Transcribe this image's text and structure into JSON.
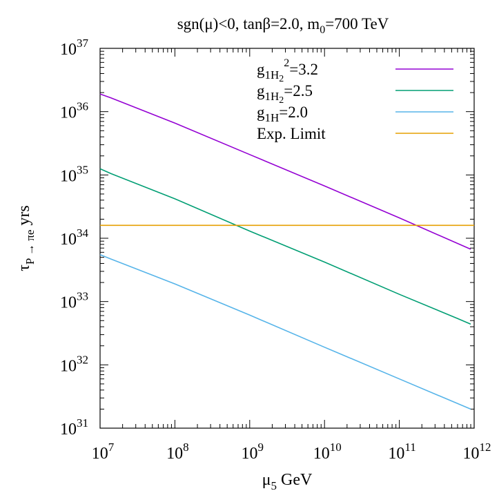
{
  "chart_data": {
    "type": "line",
    "title": "sgn(μ)<0, tanβ=2.0, m",
    "title_sub": "0",
    "title_tail": "=700 TeV",
    "xlabel": "μ",
    "xlabel_sub": "5",
    "xlabel_tail": " GeV",
    "ylabel": "τ",
    "ylabel_sub": "P → πe",
    "ylabel_tail": " yrs",
    "x_scale": "log",
    "y_scale": "log",
    "xlim": [
      10000000.0,
      1000000000000.0
    ],
    "ylim": [
      1e+31,
      1e+37
    ],
    "x_ticks": [
      {
        "base": "10",
        "exp": "7"
      },
      {
        "base": "10",
        "exp": "8"
      },
      {
        "base": "10",
        "exp": "9"
      },
      {
        "base": "10",
        "exp": "10"
      },
      {
        "base": "10",
        "exp": "11"
      },
      {
        "base": "10",
        "exp": "12"
      }
    ],
    "y_ticks": [
      {
        "base": "10",
        "exp": "31"
      },
      {
        "base": "10",
        "exp": "32"
      },
      {
        "base": "10",
        "exp": "33"
      },
      {
        "base": "10",
        "exp": "34"
      },
      {
        "base": "10",
        "exp": "35"
      },
      {
        "base": "10",
        "exp": "36"
      },
      {
        "base": "10",
        "exp": "37"
      }
    ],
    "grid": false,
    "legend_position": "top-right",
    "series": [
      {
        "name": "g1H2²=3.2",
        "legend": {
          "main": "g",
          "sub": "1H",
          "subsub": "2",
          "sup": "2",
          "tail": "=3.2"
        },
        "color": "#9400d3",
        "x": [
          10000000.0,
          14000000.0,
          100000000.0,
          1000000000.0,
          10000000000.0,
          100000000000.0,
          900000000000.0
        ],
        "y": [
          1.9e+36,
          1.65e+36,
          6.6e+35,
          2.1e+35,
          6.7e+34,
          2.1e+34,
          6.7e+33
        ]
      },
      {
        "name": "g1H2=2.5",
        "legend": {
          "main": "g",
          "sub": "1H",
          "subsub": "2",
          "sup": "",
          "tail": "=2.5"
        },
        "color": "#009e73",
        "x": [
          10000000.0,
          14000000.0,
          100000000.0,
          1000000000.0,
          10000000000.0,
          100000000000.0,
          600000000000.0,
          900000000000.0
        ],
        "y": [
          1.25e+35,
          1.05e+35,
          4.2e+34,
          1.3e+34,
          4.2e+33,
          1.3e+33,
          5.4e+32,
          4.4e+32
        ]
      },
      {
        "name": "g1H=2.0",
        "legend": {
          "main": "g",
          "sub": "1H",
          "subsub": "",
          "sup": "",
          "tail": "=2.0"
        },
        "color": "#56b4e9",
        "x": [
          10000000.0,
          14000000.0,
          100000000.0,
          1000000000.0,
          10000000000.0,
          100000000000.0,
          900000000000.0
        ],
        "y": [
          5.5e+33,
          4.7e+33,
          1.9e+33,
          6.1e+32,
          1.9e+32,
          6e+31,
          2e+31
        ]
      },
      {
        "name": "Exp. Limit",
        "legend": {
          "main": "Exp. Limit",
          "sub": "",
          "subsub": "",
          "sup": "",
          "tail": ""
        },
        "color": "#e69f00",
        "x": [
          10000000.0,
          1000000000000.0
        ],
        "y": [
          1.6e+34,
          1.6e+34
        ]
      }
    ]
  }
}
